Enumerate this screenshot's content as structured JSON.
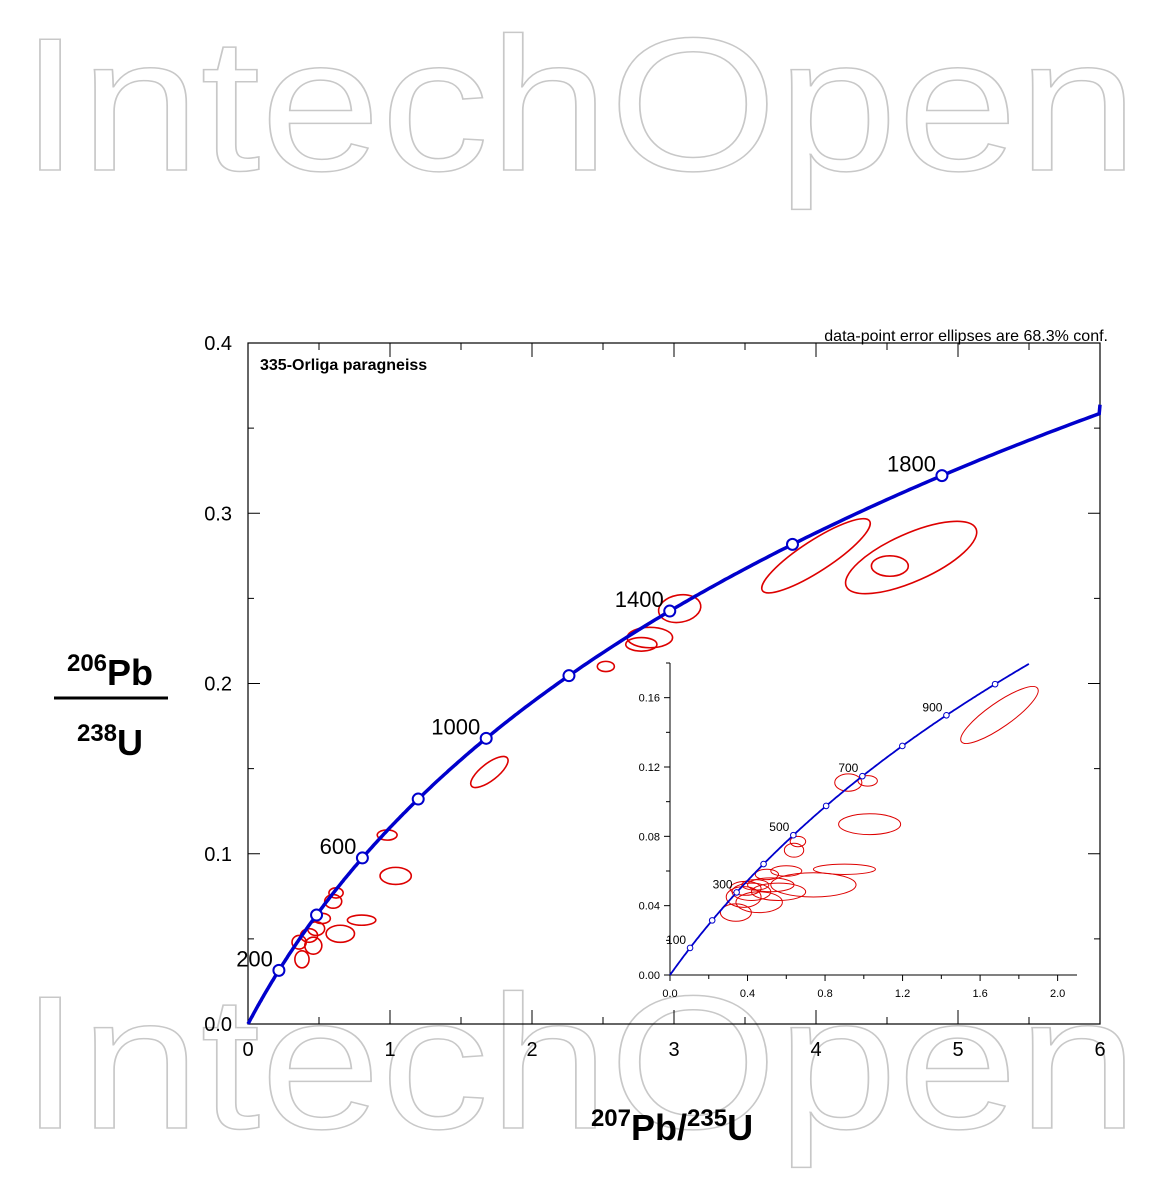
{
  "watermark": "IntechOpen",
  "chart_data": [
    {
      "type": "scatter",
      "subtype": "U-Pb concordia diagram",
      "title": "335-Orliga paragneiss",
      "note": "data-point error ellipses are 68.3% conf.",
      "xlabel": {
        "num": "207",
        "el1": "Pb",
        "sep": "/",
        "den": "235",
        "el2": "U"
      },
      "ylabel": {
        "num": "206",
        "el1": "Pb",
        "den": "238",
        "el2": "U"
      },
      "xlim": [
        0,
        6
      ],
      "ylim": [
        0,
        0.4
      ],
      "xticks": [
        0,
        1,
        2,
        3,
        4,
        5,
        6
      ],
      "yticks": [
        0.0,
        0.1,
        0.2,
        0.3,
        0.4
      ],
      "ytick_labels": [
        "0.0",
        "0.1",
        "0.2",
        "0.3",
        "0.4"
      ],
      "concordia_color": "#0000cc",
      "ellipse_color": "#dd0000",
      "age_markers": [
        200,
        400,
        600,
        800,
        1000,
        1200,
        1400,
        1600,
        1800
      ],
      "age_labels": [
        "200",
        "600",
        "1000",
        "1400",
        "1800"
      ],
      "ellipses": [
        {
          "x": 0.36,
          "y": 0.048,
          "rx": 0.05,
          "ry": 0.004,
          "rot": 0
        },
        {
          "x": 0.38,
          "y": 0.038,
          "rx": 0.05,
          "ry": 0.005,
          "rot": 0
        },
        {
          "x": 0.43,
          "y": 0.052,
          "rx": 0.06,
          "ry": 0.004,
          "rot": 0
        },
        {
          "x": 0.46,
          "y": 0.046,
          "rx": 0.06,
          "ry": 0.005,
          "rot": 0
        },
        {
          "x": 0.48,
          "y": 0.056,
          "rx": 0.06,
          "ry": 0.004,
          "rot": 0
        },
        {
          "x": 0.52,
          "y": 0.062,
          "rx": 0.06,
          "ry": 0.003,
          "rot": 0
        },
        {
          "x": 0.6,
          "y": 0.072,
          "rx": 0.06,
          "ry": 0.004,
          "rot": 0
        },
        {
          "x": 0.62,
          "y": 0.077,
          "rx": 0.05,
          "ry": 0.003,
          "rot": 0
        },
        {
          "x": 0.65,
          "y": 0.053,
          "rx": 0.1,
          "ry": 0.005,
          "rot": 0
        },
        {
          "x": 0.8,
          "y": 0.061,
          "rx": 0.1,
          "ry": 0.003,
          "rot": 0
        },
        {
          "x": 0.98,
          "y": 0.111,
          "rx": 0.07,
          "ry": 0.003,
          "rot": 0
        },
        {
          "x": 1.04,
          "y": 0.087,
          "rx": 0.11,
          "ry": 0.005,
          "rot": 0
        },
        {
          "x": 1.7,
          "y": 0.148,
          "rx": 0.16,
          "ry": 0.005,
          "rot": -38
        },
        {
          "x": 2.52,
          "y": 0.21,
          "rx": 0.06,
          "ry": 0.003,
          "rot": 0
        },
        {
          "x": 2.77,
          "y": 0.223,
          "rx": 0.11,
          "ry": 0.004,
          "rot": 0
        },
        {
          "x": 2.83,
          "y": 0.227,
          "rx": 0.16,
          "ry": 0.006,
          "rot": 0
        },
        {
          "x": 3.04,
          "y": 0.244,
          "rx": 0.15,
          "ry": 0.008,
          "rot": -10
        },
        {
          "x": 4.0,
          "y": 0.275,
          "rx": 0.45,
          "ry": 0.009,
          "rot": -33
        },
        {
          "x": 4.52,
          "y": 0.269,
          "rx": 0.13,
          "ry": 0.006,
          "rot": 0
        },
        {
          "x": 4.67,
          "y": 0.274,
          "rx": 0.5,
          "ry": 0.014,
          "rot": -24
        }
      ]
    },
    {
      "type": "scatter",
      "subtype": "U-Pb concordia inset",
      "xlim": [
        0,
        2.1
      ],
      "ylim": [
        0,
        0.18
      ],
      "xticks": [
        0.0,
        0.4,
        0.8,
        1.2,
        1.6,
        2.0
      ],
      "xtick_labels": [
        "0.0",
        "0.4",
        "0.8",
        "1.2",
        "1.6",
        "2.0"
      ],
      "yticks": [
        0.0,
        0.04,
        0.08,
        0.12,
        0.16
      ],
      "ytick_labels": [
        "0.00",
        "0.04",
        "0.08",
        "0.12",
        "0.16"
      ],
      "age_markers": [
        100,
        200,
        300,
        400,
        500,
        600,
        700,
        800,
        900,
        1000
      ],
      "age_labels": [
        "100",
        "300",
        "500",
        "700",
        "900"
      ],
      "ellipses": [
        {
          "x": 0.34,
          "y": 0.036,
          "rx": 0.08,
          "ry": 0.005,
          "rot": 0
        },
        {
          "x": 0.38,
          "y": 0.045,
          "rx": 0.09,
          "ry": 0.006,
          "rot": 0
        },
        {
          "x": 0.39,
          "y": 0.05,
          "rx": 0.08,
          "ry": 0.004,
          "rot": 0
        },
        {
          "x": 0.42,
          "y": 0.048,
          "rx": 0.1,
          "ry": 0.005,
          "rot": 0
        },
        {
          "x": 0.44,
          "y": 0.052,
          "rx": 0.07,
          "ry": 0.003,
          "rot": 0
        },
        {
          "x": 0.46,
          "y": 0.042,
          "rx": 0.12,
          "ry": 0.006,
          "rot": 0
        },
        {
          "x": 0.5,
          "y": 0.058,
          "rx": 0.06,
          "ry": 0.003,
          "rot": 0
        },
        {
          "x": 0.52,
          "y": 0.052,
          "rx": 0.12,
          "ry": 0.004,
          "rot": 0
        },
        {
          "x": 0.56,
          "y": 0.048,
          "rx": 0.14,
          "ry": 0.005,
          "rot": 0
        },
        {
          "x": 0.6,
          "y": 0.06,
          "rx": 0.08,
          "ry": 0.003,
          "rot": 0
        },
        {
          "x": 0.64,
          "y": 0.072,
          "rx": 0.05,
          "ry": 0.004,
          "rot": 0
        },
        {
          "x": 0.66,
          "y": 0.077,
          "rx": 0.04,
          "ry": 0.003,
          "rot": 0
        },
        {
          "x": 0.74,
          "y": 0.052,
          "rx": 0.22,
          "ry": 0.007,
          "rot": 0
        },
        {
          "x": 0.9,
          "y": 0.061,
          "rx": 0.16,
          "ry": 0.003,
          "rot": 0
        },
        {
          "x": 0.92,
          "y": 0.111,
          "rx": 0.07,
          "ry": 0.005,
          "rot": 0
        },
        {
          "x": 1.03,
          "y": 0.087,
          "rx": 0.16,
          "ry": 0.006,
          "rot": 0
        },
        {
          "x": 1.02,
          "y": 0.112,
          "rx": 0.05,
          "ry": 0.003,
          "rot": 0
        },
        {
          "x": 1.7,
          "y": 0.15,
          "rx": 0.24,
          "ry": 0.007,
          "rot": -35
        }
      ]
    }
  ]
}
